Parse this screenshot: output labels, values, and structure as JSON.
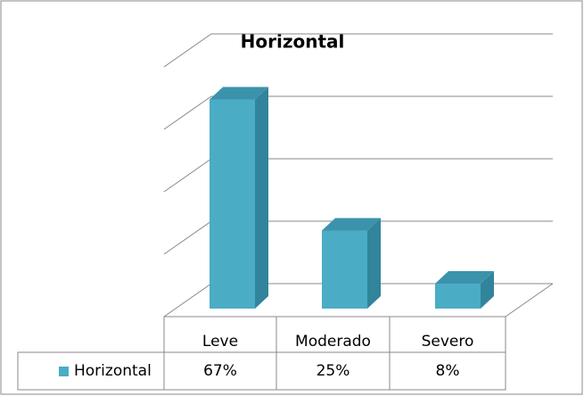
{
  "chart_data": {
    "type": "bar3d",
    "title": "Horizontal",
    "categories": [
      "Leve",
      "Moderado",
      "Severo"
    ],
    "series": [
      {
        "name": "Horizontal",
        "color": "#4bacc6",
        "values": [
          67,
          25,
          8
        ],
        "value_labels": [
          "67%",
          "25%",
          "8%"
        ]
      }
    ],
    "ylim": [
      0,
      80
    ],
    "yticks": [
      0,
      20,
      40,
      60,
      80
    ],
    "grid": true
  }
}
